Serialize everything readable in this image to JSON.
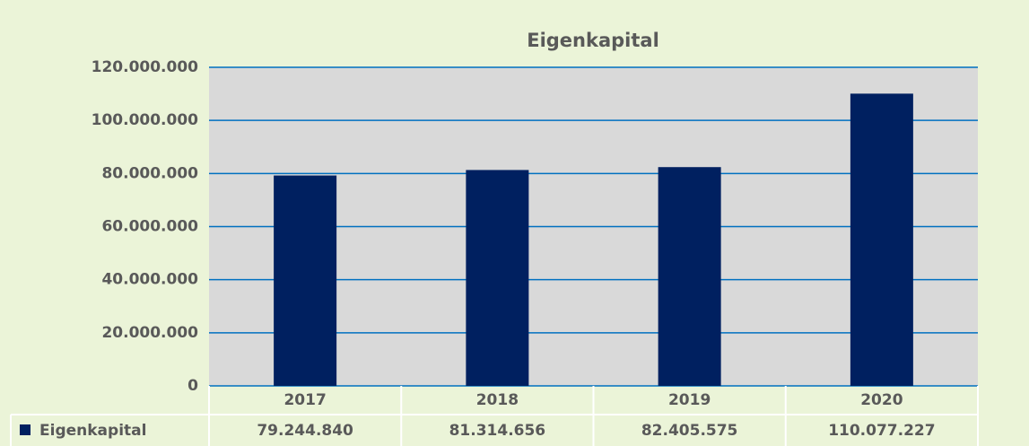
{
  "chart_data": {
    "type": "bar",
    "title": "Eigenkapital",
    "categories": [
      "2017",
      "2018",
      "2019",
      "2020"
    ],
    "series": [
      {
        "name": "Eigenkapital",
        "color": "#002060",
        "values": [
          79244840,
          81314656,
          82405575,
          110077227
        ],
        "value_labels": [
          "79.244.840",
          "81.314.656",
          "82.405.575",
          "110.077.227"
        ]
      }
    ],
    "ylim": [
      0,
      120000000
    ],
    "yticks": [
      0,
      {
        "value": 20000000,
        "label": "20.000.000"
      },
      {
        "value": 40000000,
        "label": "40.000.000"
      },
      {
        "value": 60000000,
        "label": "60.000.000"
      },
      {
        "value": 80000000,
        "label": "80.000.000"
      },
      {
        "value": 100000000,
        "label": "100.000.000"
      },
      {
        "value": 120000000,
        "label": "120.000.000"
      }
    ],
    "grid": true
  }
}
